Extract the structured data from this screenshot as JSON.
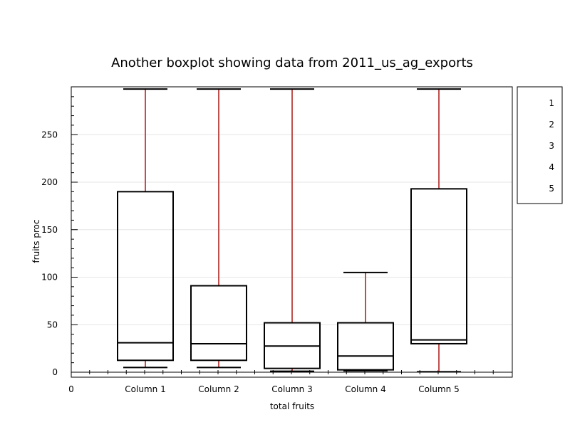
{
  "chart_data": {
    "type": "boxplot",
    "title": "Another  boxplot showing data from 2011_us_ag_exports",
    "xlabel": "total fruits",
    "ylabel": "fruits proc",
    "x_origin_label": "0",
    "categories": [
      "Column 1",
      "Column 2",
      "Column 3",
      "Column 4",
      "Column 5"
    ],
    "ylim": [
      -5,
      298
    ],
    "yticks": [
      0,
      50,
      100,
      150,
      200,
      250
    ],
    "grid": true,
    "boxes": [
      {
        "category": "Column 1",
        "whisker_low": 5,
        "q1": 12.5,
        "median": 31,
        "q3": 190,
        "whisker_high": 298
      },
      {
        "category": "Column 2",
        "whisker_low": 5,
        "q1": 12.5,
        "median": 30,
        "q3": 91,
        "whisker_high": 298
      },
      {
        "category": "Column 3",
        "whisker_low": 1,
        "q1": 4,
        "median": 27.5,
        "q3": 52,
        "whisker_high": 298
      },
      {
        "category": "Column 4",
        "whisker_low": 1.5,
        "q1": 2.5,
        "median": 17,
        "q3": 52,
        "whisker_high": 105
      },
      {
        "category": "Column 5",
        "whisker_low": 0.5,
        "q1": 30,
        "median": 34,
        "q3": 193,
        "whisker_high": 298
      }
    ],
    "legend": {
      "placement": "right",
      "entries": [
        "1",
        "2",
        "3",
        "4",
        "5"
      ]
    },
    "colors": {
      "whisker": "#c0504d",
      "box": "#000000",
      "grid": "#e6e6e6"
    }
  }
}
